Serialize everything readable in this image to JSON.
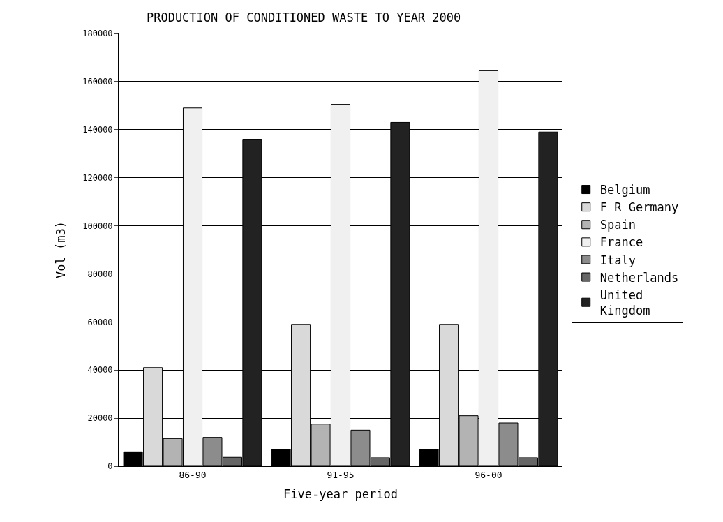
{
  "chart_data": {
    "type": "bar",
    "title": "PRODUCTION OF CONDITIONED WASTE TO YEAR 2000",
    "xlabel": "Five-year period",
    "ylabel": "Vol (m3)",
    "categories": [
      "86-90",
      "91-95",
      "96-00"
    ],
    "series": [
      {
        "name": "Belgium",
        "color": "#000000",
        "values": [
          6000,
          7000,
          7000
        ]
      },
      {
        "name": "F R Germany",
        "color": "#d9d9d9",
        "values": [
          41000,
          59000,
          59000
        ]
      },
      {
        "name": "Spain",
        "color": "#b3b3b3",
        "values": [
          11500,
          17500,
          21000
        ]
      },
      {
        "name": "France",
        "color": "#f0f0f0",
        "values": [
          149000,
          150500,
          164500
        ]
      },
      {
        "name": "Italy",
        "color": "#8c8c8c",
        "values": [
          12000,
          15000,
          18000
        ]
      },
      {
        "name": "Netherlands",
        "color": "#666666",
        "values": [
          3700,
          3500,
          3500
        ]
      },
      {
        "name": "United Kingdom",
        "color": "#222222",
        "values": [
          136000,
          143000,
          139000
        ]
      }
    ],
    "ylim": [
      0,
      180000
    ],
    "yticks": [
      0,
      20000,
      40000,
      60000,
      80000,
      100000,
      120000,
      140000,
      160000,
      180000
    ],
    "grid": "y",
    "legend": "right"
  }
}
